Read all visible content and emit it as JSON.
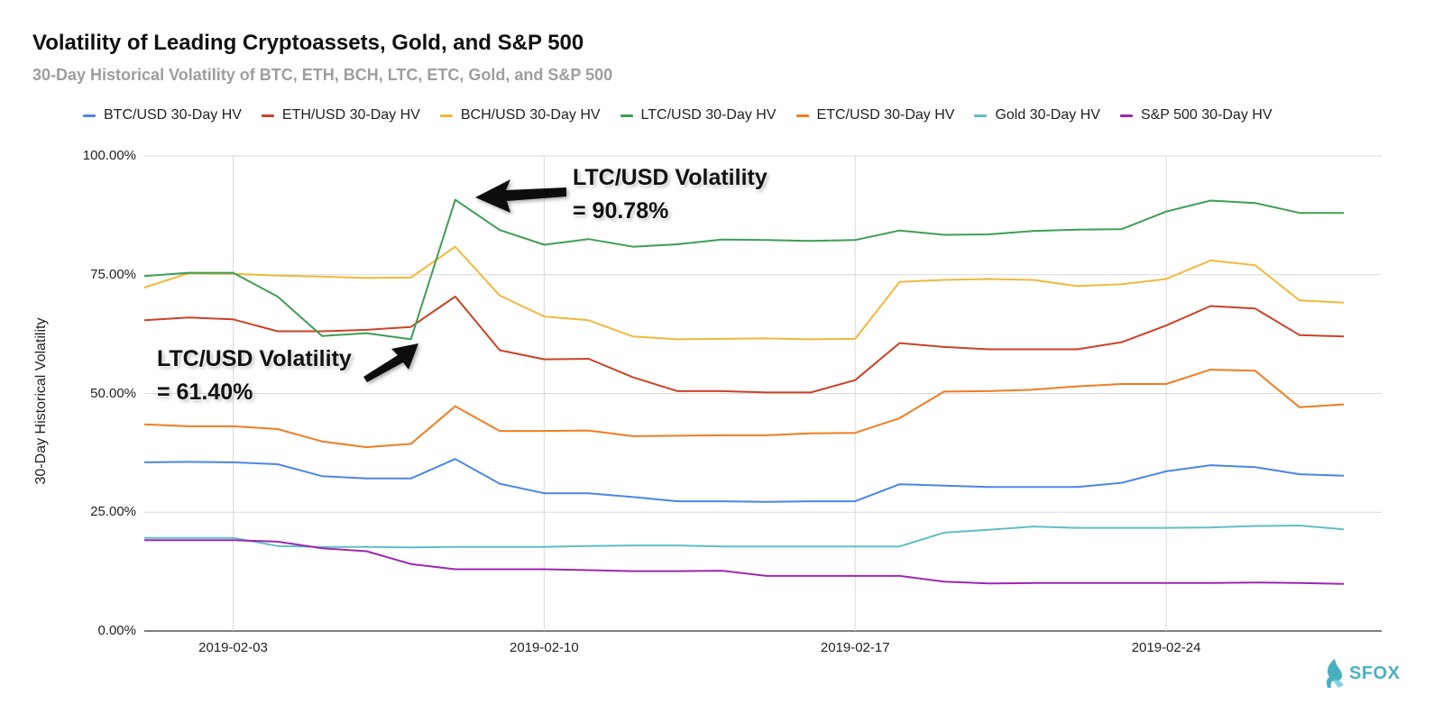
{
  "chart_data": {
    "type": "line",
    "title": "Volatility of Leading Cryptoassets, Gold, and S&P 500",
    "subtitle": "30-Day Historical Volatility of BTC, ETH, BCH, LTC, ETC, Gold, and S&P 500",
    "ylabel": "30-Day Historical Volatility",
    "xlabel": "",
    "ylim": [
      0,
      100
    ],
    "yticks": [
      "0.00%",
      "25.00%",
      "50.00%",
      "75.00%",
      "100.00%"
    ],
    "xticks": [
      "2019-02-03",
      "2019-02-10",
      "2019-02-17",
      "2019-02-24"
    ],
    "x": [
      "2019-02-01",
      "2019-02-02",
      "2019-02-03",
      "2019-02-04",
      "2019-02-05",
      "2019-02-06",
      "2019-02-07",
      "2019-02-08",
      "2019-02-09",
      "2019-02-10",
      "2019-02-11",
      "2019-02-12",
      "2019-02-13",
      "2019-02-14",
      "2019-02-15",
      "2019-02-16",
      "2019-02-17",
      "2019-02-18",
      "2019-02-19",
      "2019-02-20",
      "2019-02-21",
      "2019-02-22",
      "2019-02-23",
      "2019-02-24",
      "2019-02-25",
      "2019-02-26",
      "2019-02-27",
      "2019-02-28"
    ],
    "grid": true,
    "legend_position": "top",
    "series": [
      {
        "name": "BTC/USD 30-Day HV",
        "color": "#4a86e8",
        "values": [
          35.5,
          35.6,
          35.5,
          35.1,
          32.6,
          32.1,
          32.1,
          36.2,
          31.0,
          29.0,
          29.0,
          28.2,
          27.3,
          27.3,
          27.2,
          27.3,
          27.3,
          30.9,
          30.6,
          30.3,
          30.3,
          30.3,
          31.2,
          33.6,
          34.9,
          34.5,
          33.0,
          32.7
        ]
      },
      {
        "name": "ETH/USD 30-Day HV",
        "color": "#cc4125",
        "values": [
          65.4,
          66.0,
          65.6,
          63.1,
          63.1,
          63.4,
          64.0,
          70.4,
          59.1,
          57.2,
          57.3,
          53.4,
          50.5,
          50.5,
          50.2,
          50.2,
          52.8,
          60.6,
          59.8,
          59.3,
          59.3,
          59.3,
          60.8,
          64.3,
          68.4,
          67.9,
          62.3,
          62.0
        ]
      },
      {
        "name": "BCH/USD 30-Day HV",
        "color": "#f1b83a",
        "values": [
          72.3,
          75.3,
          75.2,
          74.8,
          74.6,
          74.3,
          74.4,
          80.9,
          70.6,
          66.2,
          65.4,
          62.0,
          61.4,
          61.5,
          61.6,
          61.4,
          61.5,
          73.5,
          73.9,
          74.1,
          73.9,
          72.6,
          73.0,
          74.1,
          78.0,
          77.0,
          69.6,
          69.1
        ]
      },
      {
        "name": "LTC/USD 30-Day HV",
        "color": "#3d9e55",
        "values": [
          74.7,
          75.4,
          75.4,
          70.4,
          62.1,
          62.7,
          61.4,
          90.78,
          84.4,
          81.3,
          82.5,
          80.9,
          81.4,
          82.4,
          82.3,
          82.1,
          82.3,
          84.3,
          83.4,
          83.5,
          84.2,
          84.5,
          84.6,
          88.3,
          90.6,
          90.1,
          88.0,
          88.0
        ]
      },
      {
        "name": "ETC/USD 30-Day HV",
        "color": "#ef7d22",
        "values": [
          43.5,
          43.1,
          43.1,
          42.5,
          39.9,
          38.7,
          39.4,
          47.3,
          42.1,
          42.1,
          42.2,
          41.0,
          41.1,
          41.2,
          41.2,
          41.6,
          41.7,
          44.8,
          50.4,
          50.5,
          50.8,
          51.5,
          52.0,
          52.0,
          55.0,
          54.8,
          47.1,
          47.7
        ]
      },
      {
        "name": "Gold 30-Day HV",
        "color": "#5fbfc5",
        "values": [
          19.6,
          19.6,
          19.6,
          17.9,
          17.7,
          17.7,
          17.6,
          17.7,
          17.7,
          17.7,
          17.9,
          18.0,
          18.0,
          17.8,
          17.8,
          17.8,
          17.8,
          17.8,
          20.7,
          21.3,
          22.0,
          21.7,
          21.7,
          21.7,
          21.8,
          22.1,
          22.2,
          21.4
        ]
      },
      {
        "name": "S&P 500 30-Day HV",
        "color": "#9c27b0",
        "values": [
          19.1,
          19.1,
          19.1,
          18.8,
          17.4,
          16.8,
          14.1,
          13.0,
          13.0,
          13.0,
          12.8,
          12.6,
          12.6,
          12.7,
          11.6,
          11.6,
          11.6,
          11.6,
          10.4,
          10.0,
          10.1,
          10.1,
          10.1,
          10.1,
          10.1,
          10.2,
          10.1,
          9.9
        ]
      }
    ],
    "annotations": [
      {
        "line1": "LTC/USD Volatility",
        "line2": "= 90.78%",
        "series": "LTC/USD 30-Day HV",
        "x": "2019-02-08",
        "y": 90.78
      },
      {
        "line1": "LTC/USD Volatility",
        "line2": "= 61.40%",
        "series": "LTC/USD 30-Day HV",
        "x": "2019-02-07",
        "y": 61.4
      }
    ]
  },
  "logo": {
    "text": "SFOX",
    "color": "#4ab0c1"
  }
}
